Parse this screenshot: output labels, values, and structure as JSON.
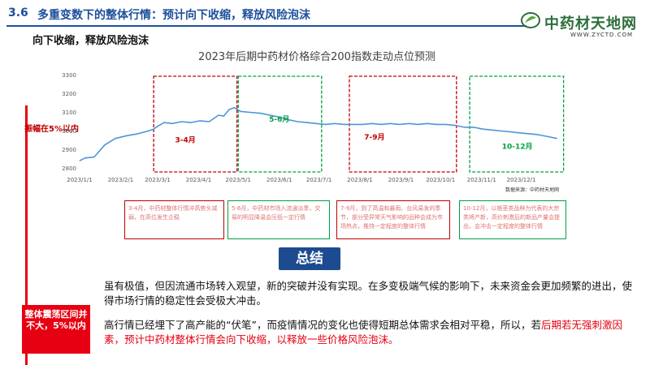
{
  "header": {
    "section_number": "3.6",
    "section_title": "多重变数下的整体行情：预计向下收缩，释放风险泡沫",
    "subtitle": "向下收缩，释放风险泡沫",
    "logo_name": "中药材天地网",
    "logo_url": "WWW.ZYCTD.COM"
  },
  "side": {
    "amplitude_note": "振幅在5%以内",
    "summary_box": "整体震荡区间并不大，5%以内"
  },
  "chart_data": {
    "type": "line",
    "title": "2023年后期中药材价格综合200指数走动点位预测",
    "x_ticks": [
      "2023/1/1",
      "2023/2/1",
      "2023/3/1",
      "2023/4/1",
      "2023/5/1",
      "2023/6/1",
      "2023/7/1",
      "2023/8/1",
      "2023/9/1",
      "2023/10/1",
      "2023/11/1",
      "2023/12/1"
    ],
    "y_ticks": [
      2800,
      2900,
      3000,
      3100,
      3200,
      3300
    ],
    "ylim": [
      2780,
      3320
    ],
    "xlim": [
      "2023-01-01",
      "2024-01-01"
    ],
    "series": [
      {
        "color": "#4d95d9",
        "points": [
          [
            "2023-01-01",
            2840
          ],
          [
            "2023-01-05",
            2855
          ],
          [
            "2023-01-12",
            2860
          ],
          [
            "2023-01-20",
            2925
          ],
          [
            "2023-01-28",
            2960
          ],
          [
            "2023-02-06",
            2975
          ],
          [
            "2023-02-14",
            2985
          ],
          [
            "2023-02-22",
            3000
          ],
          [
            "2023-02-26",
            3010
          ],
          [
            "2023-03-01",
            3025
          ],
          [
            "2023-03-06",
            3045
          ],
          [
            "2023-03-12",
            3040
          ],
          [
            "2023-03-19",
            3050
          ],
          [
            "2023-03-26",
            3045
          ],
          [
            "2023-04-02",
            3055
          ],
          [
            "2023-04-09",
            3050
          ],
          [
            "2023-04-16",
            3085
          ],
          [
            "2023-04-20",
            3080
          ],
          [
            "2023-04-24",
            3115
          ],
          [
            "2023-04-28",
            3125
          ],
          [
            "2023-05-03",
            3105
          ],
          [
            "2023-05-10",
            3100
          ],
          [
            "2023-05-18",
            3095
          ],
          [
            "2023-05-25",
            3085
          ],
          [
            "2023-06-01",
            3075
          ],
          [
            "2023-06-08",
            3060
          ],
          [
            "2023-06-15",
            3050
          ],
          [
            "2023-06-22",
            3045
          ],
          [
            "2023-06-29",
            3040
          ],
          [
            "2023-07-06",
            3035
          ],
          [
            "2023-07-13",
            3040
          ],
          [
            "2023-07-20",
            3035
          ],
          [
            "2023-07-27",
            3035
          ],
          [
            "2023-08-03",
            3035
          ],
          [
            "2023-08-10",
            3040
          ],
          [
            "2023-08-17",
            3035
          ],
          [
            "2023-08-24",
            3040
          ],
          [
            "2023-08-31",
            3035
          ],
          [
            "2023-09-07",
            3040
          ],
          [
            "2023-09-14",
            3035
          ],
          [
            "2023-09-21",
            3040
          ],
          [
            "2023-09-28",
            3035
          ],
          [
            "2023-10-05",
            3035
          ],
          [
            "2023-10-12",
            3030
          ],
          [
            "2023-10-19",
            3020
          ],
          [
            "2023-10-26",
            3020
          ],
          [
            "2023-11-02",
            3010
          ],
          [
            "2023-11-09",
            3005
          ],
          [
            "2023-11-16",
            3000
          ],
          [
            "2023-11-23",
            2995
          ],
          [
            "2023-11-30",
            2990
          ],
          [
            "2023-12-07",
            2985
          ],
          [
            "2023-12-14",
            2980
          ],
          [
            "2023-12-21",
            2970
          ],
          [
            "2023-12-28",
            2960
          ]
        ]
      }
    ],
    "periods": [
      {
        "label": "3-4月",
        "color": "#c00000",
        "start": "2023-02-26",
        "end": "2023-04-30",
        "label_x": "2023-03-22",
        "label_y": 2940
      },
      {
        "label": "5-6月",
        "color": "#00a040",
        "start": "2023-05-01",
        "end": "2023-07-03",
        "label_x": "2023-06-01",
        "label_y": 3050
      },
      {
        "label": "7-9月",
        "color": "#c00000",
        "start": "2023-07-24",
        "end": "2023-10-13",
        "label_x": "2023-08-12",
        "label_y": 2955
      },
      {
        "label": "10-12月",
        "color": "#00a040",
        "start": "2023-10-23",
        "end": "2024-01-02",
        "label_x": "2023-11-28",
        "label_y": 2905
      }
    ],
    "grid": false,
    "source": "数据来源：中药材天地网"
  },
  "notes": [
    {
      "text": "3-4月，中药材整体行情冲高势头减弱，在高位发生企稳"
    },
    {
      "text": "5-6月，中药材市场入流通淡季，交易的明显降温会压低一定行情"
    },
    {
      "text": "7-9月，到了高温和暴雨、台风易发的季节，部分受异常天气影响的品种会成为市场热点，推持一定程度的整体行情"
    },
    {
      "text": "10-12月，以根茎类品种为代表的大宗类将产新，高价刺激后的新品产量会提出，会冲击一定程度的整体行情"
    }
  ],
  "summary": {
    "badge": "总结",
    "para1": "虽有极值，但因流通市场转入观望，新的突破并没有实现。在多变极端气候的影响下，未来资金会更加频繁的进出，使得市场行情的稳定性会受极大冲击。",
    "para2_a": "高行情已经埋下了高产能的“伏笔”，而疫情情况的变化也使得短期总体需求会相对平稳，所以，若",
    "para2_b": "后期若无强刺激因素，预计中药材整体行情会向下收缩，以释放一些价格风险泡沫。",
    "accent_color": "#e60012"
  }
}
